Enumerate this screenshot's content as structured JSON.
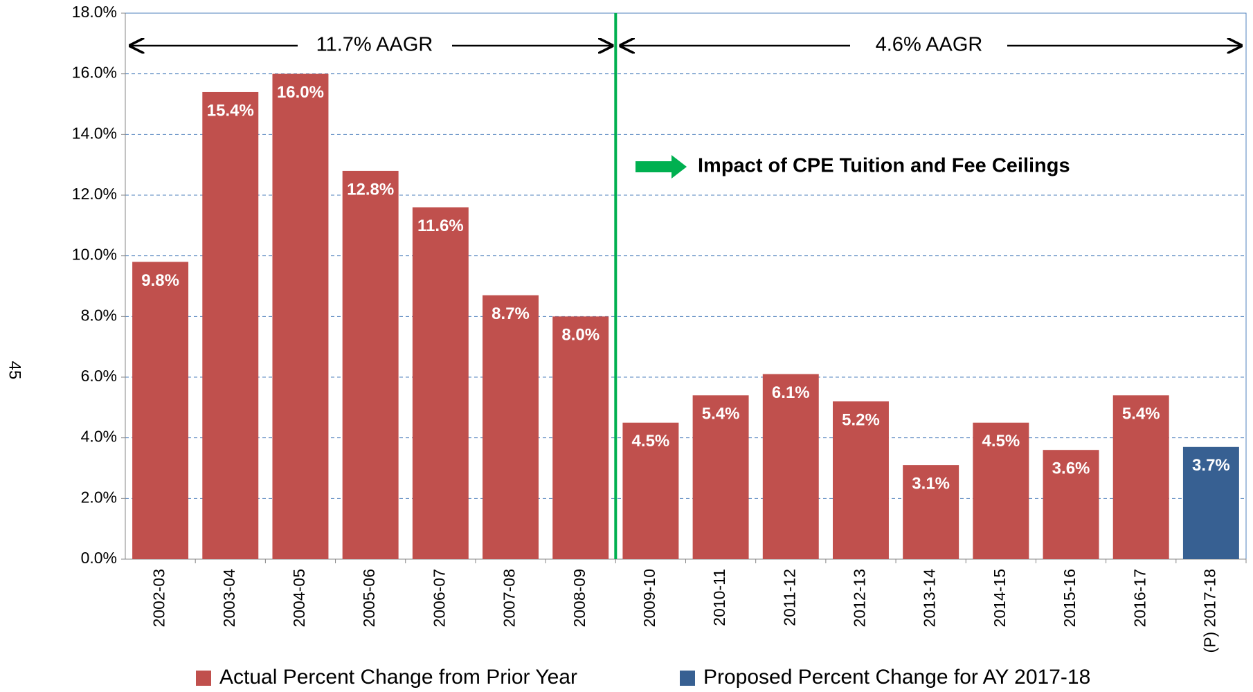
{
  "page_number": "45",
  "chart_data": {
    "type": "bar",
    "categories": [
      "2002-03",
      "2003-04",
      "2004-05",
      "2005-06",
      "2006-07",
      "2007-08",
      "2008-09",
      "2009-10",
      "2010-11",
      "2011-12",
      "2012-13",
      "2013-14",
      "2014-15",
      "2015-16",
      "2016-17",
      "(P) 2017-18"
    ],
    "series": [
      {
        "name": "Actual Percent Change from Prior Year",
        "color": "#c0504d",
        "values": [
          9.8,
          15.4,
          16.0,
          12.8,
          11.6,
          8.7,
          8.0,
          4.5,
          5.4,
          6.1,
          5.2,
          3.1,
          4.5,
          3.6,
          5.4,
          null
        ],
        "value_labels": [
          "9.8%",
          "15.4%",
          "16.0%",
          "12.8%",
          "11.6%",
          "8.7%",
          "8.0%",
          "4.5%",
          "5.4%",
          "6.1%",
          "5.2%",
          "3.1%",
          "4.5%",
          "3.6%",
          "5.4%",
          null
        ]
      },
      {
        "name": "Proposed Percent Change for AY 2017-18",
        "color": "#376092",
        "values": [
          null,
          null,
          null,
          null,
          null,
          null,
          null,
          null,
          null,
          null,
          null,
          null,
          null,
          null,
          null,
          3.7
        ],
        "value_labels": [
          null,
          null,
          null,
          null,
          null,
          null,
          null,
          null,
          null,
          null,
          null,
          null,
          null,
          null,
          null,
          "3.7%"
        ]
      }
    ],
    "annotations": [
      "11.7% AAGR",
      "4.6% AAGR",
      "Impact of CPE Tuition and Fee Ceilings"
    ],
    "ylim": [
      0,
      18
    ],
    "yticks": [
      {
        "value": 0,
        "label": "0.0%"
      },
      {
        "value": 2,
        "label": "2.0%"
      },
      {
        "value": 4,
        "label": "4.0%"
      },
      {
        "value": 6,
        "label": "6.0%"
      },
      {
        "value": 8,
        "label": "8.0%"
      },
      {
        "value": 10,
        "label": "10.0%"
      },
      {
        "value": 12,
        "label": "12.0%"
      },
      {
        "value": 14,
        "label": "14.0%"
      },
      {
        "value": 16,
        "label": "16.0%"
      },
      {
        "value": 18,
        "label": "18.0%"
      }
    ],
    "grid": true,
    "legend": "bottom"
  }
}
